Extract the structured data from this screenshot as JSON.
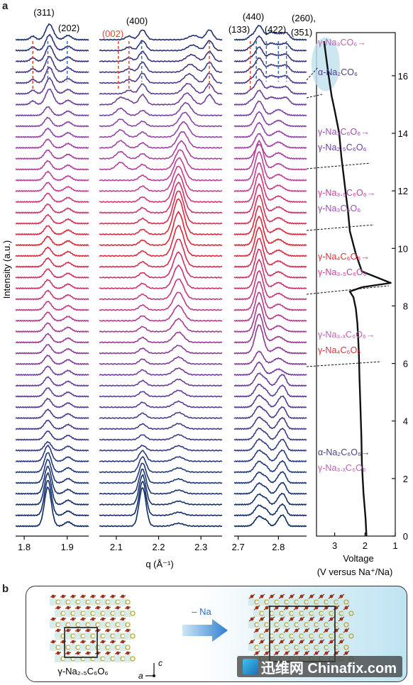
{
  "panel_a_label": "a",
  "panel_b_label": "b",
  "y_axis_label": "Intensity (a.u.)",
  "x_axis_label": "q (Å⁻¹)",
  "voltage_axis_label": "Voltage",
  "voltage_axis_sublabel": "(V versus Na⁺/Na)",
  "peaks": {
    "p311": "(311)",
    "p202": "(202)",
    "p400": "(400)",
    "p002": "(002)",
    "p440": "(440)",
    "p133": "(133)",
    "p422": "(422)",
    "p260": "(260),",
    "p351": "(351)"
  },
  "phase_labels": [
    {
      "text": "γ-Na₃CO₆→",
      "color": "#c060b0"
    },
    {
      "text": "α-Na₂CO₆",
      "color": "#4a3d8f"
    },
    {
      "text": "γ-Na₃C₆O₆→",
      "color": "#9c4fb5"
    },
    {
      "text": "γ-Na₂.₅C₆O₆",
      "color": "#6a3fa0"
    },
    {
      "text": "γ-Na₃.₅C₆O₆→",
      "color": "#c5419d"
    },
    {
      "text": "γ-Na₃C₆O₆",
      "color": "#9c4fb5"
    },
    {
      "text": "γ-Na₄C₆O₆→",
      "color": "#d6333a"
    },
    {
      "text": "γ-Na₃.₅C₆O₆",
      "color": "#c5419d"
    },
    {
      "text": "γ-Na₃.ₓC₆O₆→",
      "color": "#c060b0"
    },
    {
      "text": "γ-Na₄C₆O₆",
      "color": "#d6333a"
    },
    {
      "text": "α-Na₂C₆O₆→",
      "color": "#4a3d8f"
    },
    {
      "text": "γ-Na₃.ₓC₆O₆",
      "color": "#c060b0"
    }
  ],
  "structure_b": {
    "left_caption": "γ-Na₂.₅C₆O₆",
    "arrow_label": "– Na",
    "axis_a": "a",
    "axis_c": "c"
  },
  "watermark": "迅维网 Chinafix.com",
  "chart_data": [
    {
      "type": "line",
      "title": "",
      "panel": "XRD (311)/(202) region",
      "xlabel": "",
      "xlim": [
        1.78,
        1.95
      ],
      "xticks": [
        1.8,
        1.9
      ],
      "n_scans": 46,
      "peak_positions": [
        1.855,
        1.9
      ],
      "dashed_guides": [
        1.82,
        1.855,
        1.9
      ]
    },
    {
      "type": "line",
      "title": "",
      "panel": "XRD (400) region",
      "xlabel": "q (Å⁻¹)",
      "xlim": [
        2.06,
        2.35
      ],
      "xticks": [
        2.1,
        2.2,
        2.3
      ],
      "n_scans": 46,
      "peak_positions": [
        2.16,
        2.245,
        2.32
      ],
      "dashed_guides": [
        2.105,
        2.13,
        2.16,
        2.32
      ]
    },
    {
      "type": "line",
      "title": "",
      "panel": "XRD (440)/(133)/(422) region",
      "xlabel": "",
      "xlim": [
        2.69,
        2.87
      ],
      "xticks": [
        2.7,
        2.8
      ],
      "n_scans": 46,
      "peak_positions": [
        2.745,
        2.77,
        2.8,
        2.81
      ],
      "dashed_guides": [
        2.73,
        2.745,
        2.77,
        2.8,
        2.82
      ]
    },
    {
      "type": "line",
      "title": "",
      "panel": "Voltage profile",
      "xlabel": "Voltage (V versus Na⁺/Na)",
      "x_reversed": true,
      "xlim": [
        1,
        3.6
      ],
      "xticks": [
        3,
        2,
        1
      ],
      "ylim": [
        0,
        17.5
      ],
      "yticks": [
        0,
        2,
        4,
        6,
        8,
        10,
        12,
        14,
        16
      ],
      "series": [
        {
          "x": [
            1.95,
            1.98,
            2.05,
            2.1,
            2.12,
            2.15,
            2.18,
            2.2,
            2.22,
            2.25,
            2.3,
            2.38,
            2.5,
            2.1,
            1.15,
            2.1,
            2.3,
            2.5,
            2.55,
            2.62,
            2.7,
            2.78,
            2.85,
            3.0,
            3.1,
            3.2,
            3.3,
            3.35
          ],
          "y": [
            0,
            0.6,
            1.5,
            2.5,
            3.5,
            4.5,
            5.5,
            6.3,
            6.8,
            7.4,
            7.9,
            8.3,
            8.5,
            8.65,
            8.8,
            9.2,
            9.8,
            10.6,
            11.2,
            11.8,
            12.5,
            13.2,
            14,
            14.8,
            15.3,
            16,
            16.8,
            17.2
          ]
        }
      ]
    }
  ]
}
